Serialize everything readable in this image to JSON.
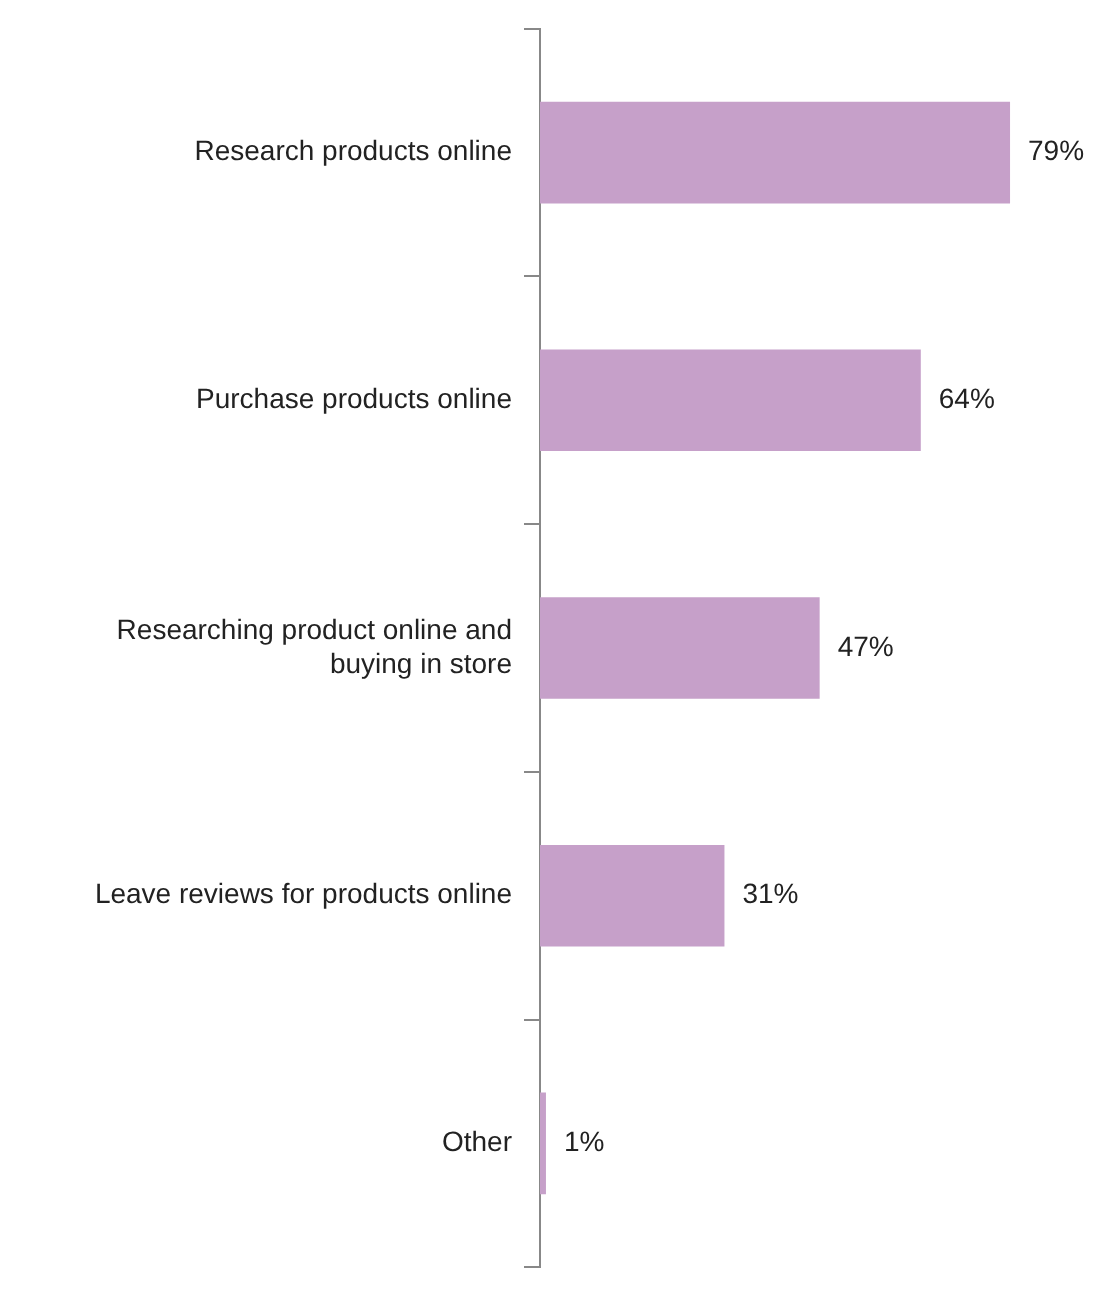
{
  "chart_data": {
    "type": "bar",
    "orientation": "horizontal",
    "categories": [
      "Research products online",
      "Purchase products online",
      "Researching product online and buying in store",
      "Leave reviews for products online",
      "Other"
    ],
    "values": [
      79,
      64,
      47,
      31,
      1
    ],
    "value_labels": [
      "79%",
      "64%",
      "47%",
      "31%",
      "1%"
    ],
    "color": "#c6a0c9",
    "xlim": [
      0,
      80
    ],
    "tick_labels": "y",
    "legend": false
  }
}
